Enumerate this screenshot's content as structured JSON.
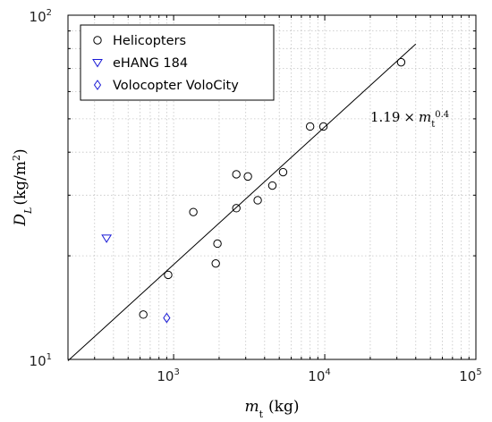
{
  "chart_data": {
    "type": "scatter",
    "xscale": "log",
    "yscale": "log",
    "xlim": [
      200,
      100000
    ],
    "ylim": [
      10,
      100
    ],
    "grid": true,
    "x_ticks": [
      {
        "value": 1000,
        "base": "10",
        "exp": "3"
      },
      {
        "value": 10000,
        "base": "10",
        "exp": "4"
      },
      {
        "value": 100000,
        "base": "10",
        "exp": "5"
      }
    ],
    "y_ticks": [
      {
        "value": 10,
        "base": "10",
        "exp": "1"
      },
      {
        "value": 100,
        "base": "10",
        "exp": "2"
      }
    ],
    "xlabel": {
      "var": "m",
      "sub": "t",
      "unit": "(kg)"
    },
    "ylabel": {
      "var": "D",
      "sub": "L",
      "unit_open": "(kg/m",
      "unit_sup": "2",
      "unit_close": ")"
    },
    "legend_position": "top-left",
    "series": [
      {
        "name": "Helicopters",
        "marker": "circle",
        "color": "#000000",
        "points": [
          [
            630,
            13.5
          ],
          [
            920,
            17.6
          ],
          [
            1350,
            26.8
          ],
          [
            1900,
            19
          ],
          [
            1950,
            21.7
          ],
          [
            2600,
            27.5
          ],
          [
            2600,
            34.5
          ],
          [
            3100,
            34
          ],
          [
            3600,
            29
          ],
          [
            4500,
            32
          ],
          [
            5300,
            35
          ],
          [
            8000,
            47.5
          ],
          [
            9800,
            47.5
          ],
          [
            32000,
            73
          ]
        ]
      },
      {
        "name": "eHANG 184",
        "marker": "triangle-down",
        "color": "#1a1ad6",
        "points": [
          [
            360,
            22.5
          ]
        ]
      },
      {
        "name": "Volocopter VoloCity",
        "marker": "diamond",
        "color": "#1a1ad6",
        "points": [
          [
            900,
            13.2
          ]
        ]
      }
    ],
    "fit_line": {
      "coef": 1.19,
      "exponent": 0.4,
      "x_range": [
        200,
        40000
      ],
      "label": {
        "coef": "1.19",
        "times": "×",
        "var": "m",
        "sub": "t",
        "exp": "0.4"
      }
    }
  }
}
